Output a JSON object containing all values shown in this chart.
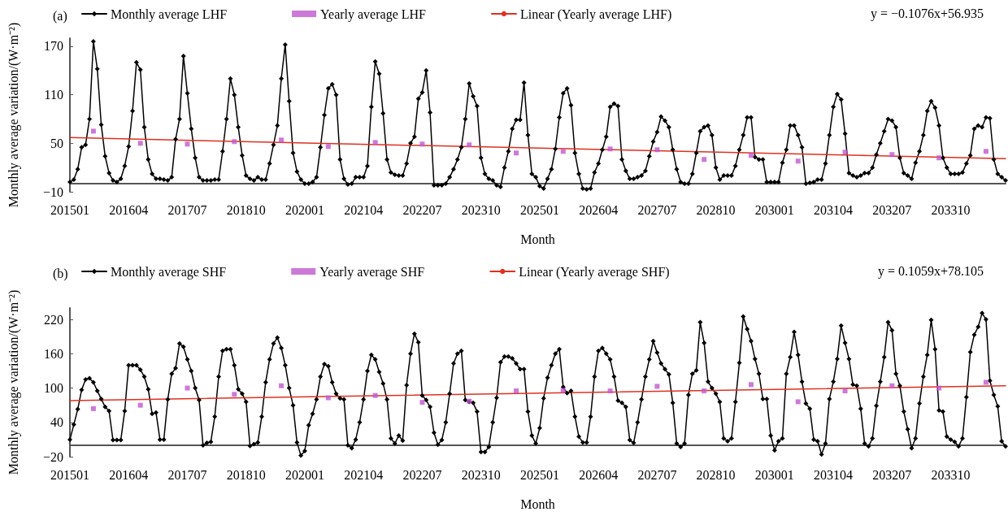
{
  "chart_data": [
    {
      "type": "line",
      "title": "(a)",
      "xlabel": "Month",
      "ylabel": "Monthly average variation/(W·m⁻²)",
      "legend": "top",
      "grid": false,
      "annotations": [
        "y = −0.1076x+56.935"
      ],
      "categories": [
        "201501",
        null,
        null,
        null,
        null,
        null,
        null,
        null,
        null,
        null,
        null,
        null,
        null,
        null,
        null,
        "201604",
        null,
        null,
        null,
        null,
        null,
        null,
        null,
        null,
        null,
        null,
        null,
        null,
        null,
        null,
        "201707",
        null,
        null,
        null,
        null,
        null,
        null,
        null,
        null,
        null,
        null,
        null,
        null,
        null,
        null,
        "201810",
        null,
        null,
        null,
        null,
        null,
        null,
        null,
        null,
        null,
        null,
        null,
        null,
        null,
        null,
        "202001",
        null,
        null,
        null,
        null,
        null,
        null,
        null,
        null,
        null,
        null,
        null,
        null,
        null,
        null,
        "202104",
        null,
        null,
        null,
        null,
        null,
        null,
        null,
        null,
        null,
        null,
        null,
        null,
        null,
        null,
        "202207",
        null,
        null,
        null,
        null,
        null,
        null,
        null,
        null,
        null,
        null,
        null,
        null,
        null,
        null,
        "202310",
        null,
        null,
        null,
        null,
        null,
        null,
        null,
        null,
        null,
        null,
        null,
        null,
        null,
        null,
        "202501",
        null,
        null,
        null,
        null,
        null,
        null,
        null,
        null,
        null,
        null,
        null,
        null,
        null,
        null,
        "202604",
        null,
        null,
        null,
        null,
        null,
        null,
        null,
        null,
        null,
        null,
        null,
        null,
        null,
        null,
        "202707",
        null,
        null,
        null,
        null,
        null,
        null,
        null,
        null,
        null,
        null,
        null,
        null,
        null,
        null,
        "202810",
        null,
        null,
        null,
        null,
        null,
        null,
        null,
        null,
        null,
        null,
        null,
        null,
        null,
        null,
        "203001",
        null,
        null,
        null,
        null,
        null,
        null,
        null,
        null,
        null,
        null,
        null,
        null,
        null,
        null,
        "203104",
        null,
        null,
        null,
        null,
        null,
        null,
        null,
        null,
        null,
        null,
        null,
        null,
        null,
        null,
        "203207",
        null,
        null,
        null,
        null,
        null,
        null,
        null,
        null,
        null,
        null,
        null,
        null,
        null,
        null,
        "203310",
        null,
        null,
        null,
        null,
        null,
        null,
        null,
        null,
        null,
        null,
        null,
        null,
        null,
        null
      ],
      "ylim": [
        -10,
        180
      ],
      "yticks": [
        -10,
        50,
        110,
        170
      ],
      "series": [
        {
          "name": "Monthly average LHF",
          "type": "line",
          "color": "#000000",
          "marker": "diamond",
          "line_style": "solid",
          "values": [
            2,
            5,
            18,
            45,
            48,
            80,
            176,
            142,
            73,
            34,
            13,
            4,
            2,
            6,
            22,
            46,
            90,
            150,
            141,
            70,
            30,
            12,
            6,
            6,
            5,
            4,
            8,
            55,
            80,
            158,
            112,
            68,
            32,
            8,
            4,
            4,
            4,
            5,
            5,
            40,
            80,
            130,
            110,
            70,
            35,
            10,
            6,
            4,
            8,
            5,
            5,
            25,
            48,
            72,
            130,
            172,
            102,
            38,
            15,
            5,
            0,
            0,
            2,
            8,
            45,
            85,
            118,
            123,
            110,
            30,
            6,
            -1,
            0,
            8,
            8,
            8,
            22,
            95,
            151,
            136,
            87,
            30,
            14,
            11,
            10,
            10,
            25,
            50,
            58,
            105,
            113,
            140,
            88,
            -2,
            -2,
            -2,
            0,
            8,
            18,
            30,
            45,
            80,
            124,
            108,
            96,
            32,
            12,
            6,
            4,
            -2,
            -4,
            20,
            40,
            68,
            79,
            79,
            125,
            60,
            12,
            8,
            -3,
            -6,
            6,
            18,
            43,
            82,
            112,
            118,
            97,
            38,
            12,
            -6,
            -7,
            -6,
            14,
            25,
            42,
            58,
            95,
            99,
            96,
            30,
            16,
            6,
            6,
            8,
            10,
            16,
            34,
            52,
            64,
            83,
            78,
            70,
            42,
            18,
            2,
            0,
            0,
            12,
            38,
            65,
            70,
            72,
            60,
            20,
            5,
            10,
            10,
            10,
            22,
            42,
            60,
            82,
            82,
            33,
            30,
            30,
            2,
            2,
            2,
            2,
            26,
            42,
            72,
            72,
            60,
            45,
            0,
            1,
            2,
            5,
            5,
            25,
            60,
            95,
            111,
            104,
            62,
            13,
            10,
            8,
            10,
            13,
            13,
            20,
            36,
            50,
            65,
            80,
            78,
            70,
            32,
            13,
            10,
            6,
            26,
            40,
            60,
            90,
            102,
            94,
            72,
            32,
            20,
            12,
            12,
            12,
            14,
            25,
            35,
            68,
            72,
            70,
            82,
            81,
            30,
            12,
            8,
            4
          ]
        },
        {
          "name": "Yearly average LHF",
          "type": "scatter",
          "color": "#c058d0",
          "marker": "square",
          "values": [
            null,
            null,
            null,
            null,
            null,
            null,
            65,
            null,
            null,
            null,
            null,
            null,
            null,
            null,
            null,
            null,
            null,
            null,
            50,
            null,
            null,
            null,
            null,
            null,
            null,
            null,
            null,
            null,
            null,
            null,
            49,
            null,
            null,
            null,
            null,
            null,
            null,
            null,
            null,
            null,
            null,
            null,
            52,
            null,
            null,
            null,
            null,
            null,
            null,
            null,
            null,
            null,
            null,
            null,
            54,
            null,
            null,
            null,
            null,
            null,
            null,
            null,
            null,
            null,
            null,
            null,
            46,
            null,
            null,
            null,
            null,
            null,
            null,
            null,
            null,
            null,
            null,
            null,
            51,
            null,
            null,
            null,
            null,
            null,
            null,
            null,
            null,
            null,
            null,
            null,
            49,
            null,
            null,
            null,
            null,
            null,
            null,
            null,
            null,
            null,
            null,
            null,
            48,
            null,
            null,
            null,
            null,
            null,
            null,
            null,
            null,
            null,
            null,
            null,
            38,
            null,
            null,
            null,
            null,
            null,
            null,
            null,
            null,
            null,
            null,
            null,
            40,
            null,
            null,
            null,
            null,
            null,
            null,
            null,
            null,
            null,
            null,
            null,
            43,
            null,
            null,
            null,
            null,
            null,
            null,
            null,
            null,
            null,
            null,
            null,
            42,
            null,
            null,
            null,
            null,
            null,
            null,
            null,
            null,
            null,
            null,
            null,
            30,
            null,
            null,
            null,
            null,
            null,
            null,
            null,
            null,
            null,
            null,
            null,
            35,
            null,
            null,
            null,
            null,
            null,
            null,
            null,
            null,
            null,
            null,
            null,
            28,
            null,
            null,
            null,
            null,
            null,
            null,
            null,
            null,
            null,
            null,
            null,
            39,
            null,
            null,
            null,
            null,
            null,
            null,
            null,
            null,
            null,
            null,
            null,
            36,
            null,
            null,
            null,
            null,
            null,
            null,
            null,
            null,
            null,
            null,
            null,
            32,
            null,
            null,
            null,
            null,
            null,
            null,
            null,
            null,
            null,
            null,
            null,
            40,
            null,
            null,
            null,
            null,
            null
          ]
        },
        {
          "name": "Linear (Yearly average LHF)",
          "type": "line",
          "color": "#e03020",
          "marker": "none",
          "line_style": "solid",
          "values": [
            57,
            null,
            null,
            null,
            null,
            null,
            null,
            null,
            null,
            null,
            null,
            null,
            null,
            null,
            null,
            null,
            null,
            null,
            null,
            null,
            null,
            null,
            null,
            null,
            null,
            null,
            null,
            null,
            null,
            null,
            null,
            null,
            null,
            null,
            null,
            null,
            null,
            null,
            null,
            null,
            null,
            null,
            null,
            null,
            null,
            null,
            null,
            null,
            null,
            null,
            null,
            null,
            null,
            null,
            null,
            null,
            null,
            null,
            null,
            null,
            null,
            null,
            null,
            null,
            null,
            null,
            null,
            null,
            null,
            null,
            null,
            null,
            null,
            null,
            null,
            null,
            null,
            null,
            null,
            null,
            null,
            null,
            null,
            null,
            null,
            null,
            null,
            null,
            null,
            null,
            null,
            null,
            null,
            null,
            null,
            null,
            null,
            null,
            null,
            null,
            null,
            null,
            null,
            null,
            null,
            null,
            null,
            null,
            null,
            null,
            null,
            null,
            null,
            null,
            null,
            null,
            null,
            null,
            null,
            null,
            null,
            null,
            null,
            null,
            null,
            null,
            null,
            null,
            null,
            null,
            null,
            null,
            null,
            null,
            null,
            null,
            null,
            null,
            null,
            null,
            null,
            null,
            null,
            null,
            null,
            null,
            null,
            null,
            null,
            null,
            null,
            null,
            null,
            null,
            null,
            null,
            null,
            null,
            null,
            null,
            null,
            null,
            null,
            null,
            null,
            null,
            null,
            null,
            null,
            null,
            null,
            null,
            null,
            null,
            null,
            null,
            null,
            null,
            null,
            null,
            null,
            null,
            null,
            null,
            null,
            null,
            null,
            null,
            null,
            null,
            null,
            null,
            null,
            null,
            null,
            null,
            null,
            null,
            null,
            null,
            null,
            null,
            null,
            null,
            null,
            null,
            null,
            null,
            null,
            null,
            null,
            null,
            null,
            null,
            null,
            null,
            null,
            null,
            null,
            null,
            null,
            null,
            null,
            null,
            null,
            null,
            null,
            null,
            null,
            null,
            null,
            null,
            null,
            null,
            null,
            null,
            null,
            null,
            null,
            31
          ]
        }
      ]
    },
    {
      "type": "line",
      "title": "(b)",
      "xlabel": "Month",
      "ylabel": "Monthly average variation/(W·m⁻²)",
      "legend": "top",
      "grid": false,
      "annotations": [
        "y = 0.1059x+78.105"
      ],
      "categories": [
        "201501",
        null,
        null,
        null,
        null,
        null,
        null,
        null,
        null,
        null,
        null,
        null,
        null,
        null,
        null,
        "201604",
        null,
        null,
        null,
        null,
        null,
        null,
        null,
        null,
        null,
        null,
        null,
        null,
        null,
        null,
        "201707",
        null,
        null,
        null,
        null,
        null,
        null,
        null,
        null,
        null,
        null,
        null,
        null,
        null,
        null,
        "201810",
        null,
        null,
        null,
        null,
        null,
        null,
        null,
        null,
        null,
        null,
        null,
        null,
        null,
        null,
        "202001",
        null,
        null,
        null,
        null,
        null,
        null,
        null,
        null,
        null,
        null,
        null,
        null,
        null,
        null,
        "202104",
        null,
        null,
        null,
        null,
        null,
        null,
        null,
        null,
        null,
        null,
        null,
        null,
        null,
        null,
        "202207",
        null,
        null,
        null,
        null,
        null,
        null,
        null,
        null,
        null,
        null,
        null,
        null,
        null,
        null,
        "202310",
        null,
        null,
        null,
        null,
        null,
        null,
        null,
        null,
        null,
        null,
        null,
        null,
        null,
        null,
        "202501",
        null,
        null,
        null,
        null,
        null,
        null,
        null,
        null,
        null,
        null,
        null,
        null,
        null,
        null,
        "202604",
        null,
        null,
        null,
        null,
        null,
        null,
        null,
        null,
        null,
        null,
        null,
        null,
        null,
        null,
        "202707",
        null,
        null,
        null,
        null,
        null,
        null,
        null,
        null,
        null,
        null,
        null,
        null,
        null,
        null,
        "202810",
        null,
        null,
        null,
        null,
        null,
        null,
        null,
        null,
        null,
        null,
        null,
        null,
        null,
        null,
        "203001",
        null,
        null,
        null,
        null,
        null,
        null,
        null,
        null,
        null,
        null,
        null,
        null,
        null,
        null,
        "203104",
        null,
        null,
        null,
        null,
        null,
        null,
        null,
        null,
        null,
        null,
        null,
        null,
        null,
        null,
        "203207",
        null,
        null,
        null,
        null,
        null,
        null,
        null,
        null,
        null,
        null,
        null,
        null,
        null,
        null,
        "203310",
        null,
        null,
        null,
        null,
        null,
        null,
        null,
        null,
        null,
        null,
        null,
        null,
        null,
        null
      ],
      "ylim": [
        -20,
        240
      ],
      "yticks": [
        -20,
        40,
        100,
        160,
        220
      ],
      "series": [
        {
          "name": "Monthly average SHF",
          "type": "line",
          "color": "#000000",
          "marker": "diamond",
          "line_style": "solid",
          "values": [
            10,
            36,
            63,
            97,
            115,
            117,
            110,
            95,
            81,
            67,
            60,
            9,
            9,
            9,
            60,
            140,
            140,
            140,
            132,
            120,
            98,
            55,
            57,
            10,
            10,
            80,
            125,
            135,
            178,
            172,
            150,
            130,
            100,
            79,
            0,
            4,
            6,
            50,
            120,
            165,
            168,
            168,
            140,
            98,
            90,
            76,
            -1,
            2,
            5,
            50,
            110,
            150,
            178,
            188,
            170,
            140,
            100,
            70,
            5,
            -18,
            -10,
            35,
            55,
            80,
            120,
            142,
            138,
            110,
            90,
            82,
            80,
            0,
            -5,
            10,
            40,
            80,
            130,
            158,
            150,
            128,
            108,
            80,
            12,
            3,
            17,
            8,
            105,
            160,
            195,
            180,
            87,
            79,
            67,
            22,
            1,
            9,
            40,
            90,
            143,
            160,
            165,
            79,
            76,
            74,
            59,
            -12,
            -12,
            -3,
            40,
            83,
            145,
            155,
            155,
            152,
            143,
            133,
            133,
            59,
            17,
            3,
            30,
            82,
            118,
            140,
            160,
            168,
            102,
            91,
            95,
            50,
            15,
            5,
            5,
            50,
            120,
            165,
            170,
            160,
            150,
            120,
            78,
            74,
            67,
            9,
            4,
            40,
            80,
            120,
            150,
            182,
            162,
            143,
            133,
            124,
            74,
            3,
            -3,
            3,
            88,
            125,
            131,
            215,
            179,
            111,
            100,
            90,
            76,
            12,
            7,
            12,
            76,
            144,
            225,
            203,
            182,
            151,
            125,
            81,
            81,
            17,
            -9,
            7,
            12,
            125,
            154,
            198,
            158,
            111,
            73,
            64,
            10,
            7,
            -16,
            3,
            81,
            111,
            151,
            209,
            179,
            151,
            106,
            104,
            64,
            3,
            -2,
            12,
            69,
            111,
            154,
            215,
            201,
            125,
            104,
            59,
            28,
            -5,
            12,
            73,
            120,
            158,
            219,
            168,
            61,
            59,
            15,
            10,
            6,
            -2,
            12,
            84,
            163,
            193,
            207,
            231,
            220,
            113,
            88,
            68,
            7,
            -2
          ]
        },
        {
          "name": "Yearly average SHF",
          "type": "scatter",
          "color": "#c058d0",
          "marker": "square",
          "values": [
            null,
            null,
            null,
            null,
            null,
            null,
            64,
            null,
            null,
            null,
            null,
            null,
            null,
            null,
            null,
            null,
            null,
            null,
            70,
            null,
            null,
            null,
            null,
            null,
            null,
            null,
            null,
            null,
            null,
            null,
            100,
            null,
            null,
            null,
            null,
            null,
            null,
            null,
            null,
            null,
            null,
            null,
            89,
            null,
            null,
            null,
            null,
            null,
            null,
            null,
            null,
            null,
            null,
            null,
            104,
            null,
            null,
            null,
            null,
            null,
            null,
            null,
            null,
            null,
            null,
            null,
            83,
            null,
            null,
            null,
            null,
            null,
            null,
            null,
            null,
            null,
            null,
            null,
            87,
            null,
            null,
            null,
            null,
            null,
            null,
            null,
            null,
            null,
            null,
            null,
            75,
            null,
            null,
            null,
            null,
            null,
            null,
            null,
            null,
            null,
            null,
            null,
            77,
            null,
            null,
            null,
            null,
            null,
            null,
            null,
            null,
            null,
            null,
            null,
            95,
            null,
            null,
            null,
            null,
            null,
            null,
            null,
            null,
            null,
            null,
            null,
            96,
            null,
            null,
            null,
            null,
            null,
            null,
            null,
            null,
            null,
            null,
            null,
            95,
            null,
            null,
            null,
            null,
            null,
            null,
            null,
            null,
            null,
            null,
            null,
            103,
            null,
            null,
            null,
            null,
            null,
            null,
            null,
            null,
            null,
            null,
            null,
            95,
            null,
            null,
            null,
            null,
            null,
            null,
            null,
            null,
            null,
            null,
            null,
            106,
            null,
            null,
            null,
            null,
            null,
            null,
            null,
            null,
            null,
            null,
            null,
            76,
            null,
            null,
            null,
            null,
            null,
            null,
            null,
            null,
            null,
            null,
            null,
            95,
            null,
            null,
            null,
            null,
            null,
            null,
            null,
            null,
            null,
            null,
            null,
            104,
            null,
            null,
            null,
            null,
            null,
            null,
            null,
            null,
            null,
            null,
            null,
            100,
            null,
            null,
            null,
            null,
            null,
            null,
            null,
            null,
            null,
            null,
            null,
            110,
            null,
            null,
            null,
            null,
            null
          ]
        },
        {
          "name": "Linear (Yearly average SHF)",
          "type": "line",
          "color": "#e03020",
          "marker": "none",
          "line_style": "solid",
          "values": [
            78,
            null,
            null,
            null,
            null,
            null,
            null,
            null,
            null,
            null,
            null,
            null,
            null,
            null,
            null,
            null,
            null,
            null,
            null,
            null,
            null,
            null,
            null,
            null,
            null,
            null,
            null,
            null,
            null,
            null,
            null,
            null,
            null,
            null,
            null,
            null,
            null,
            null,
            null,
            null,
            null,
            null,
            null,
            null,
            null,
            null,
            null,
            null,
            null,
            null,
            null,
            null,
            null,
            null,
            null,
            null,
            null,
            null,
            null,
            null,
            null,
            null,
            null,
            null,
            null,
            null,
            null,
            null,
            null,
            null,
            null,
            null,
            null,
            null,
            null,
            null,
            null,
            null,
            null,
            null,
            null,
            null,
            null,
            null,
            null,
            null,
            null,
            null,
            null,
            null,
            null,
            null,
            null,
            null,
            null,
            null,
            null,
            null,
            null,
            null,
            null,
            null,
            null,
            null,
            null,
            null,
            null,
            null,
            null,
            null,
            null,
            null,
            null,
            null,
            null,
            null,
            null,
            null,
            null,
            null,
            null,
            null,
            null,
            null,
            null,
            null,
            null,
            null,
            null,
            null,
            null,
            null,
            null,
            null,
            null,
            null,
            null,
            null,
            null,
            null,
            null,
            null,
            null,
            null,
            null,
            null,
            null,
            null,
            null,
            null,
            null,
            null,
            null,
            null,
            null,
            null,
            null,
            null,
            null,
            null,
            null,
            null,
            null,
            null,
            null,
            null,
            null,
            null,
            null,
            null,
            null,
            null,
            null,
            null,
            null,
            null,
            null,
            null,
            null,
            null,
            null,
            null,
            null,
            null,
            null,
            null,
            null,
            null,
            null,
            null,
            null,
            null,
            null,
            null,
            null,
            null,
            null,
            null,
            null,
            null,
            null,
            null,
            null,
            null,
            null,
            null,
            null,
            null,
            null,
            null,
            null,
            null,
            null,
            null,
            null,
            null,
            null,
            null,
            null,
            null,
            null,
            null,
            null,
            null,
            null,
            null,
            null,
            null,
            null,
            null,
            null,
            null,
            null,
            null,
            null,
            null,
            null,
            null,
            null,
            104
          ]
        }
      ]
    }
  ]
}
